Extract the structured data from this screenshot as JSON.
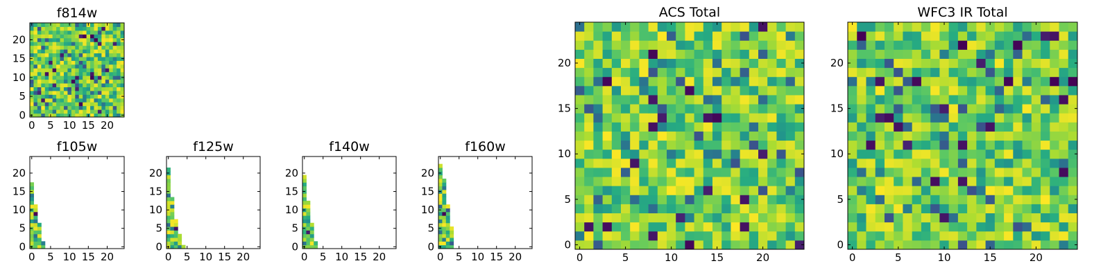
{
  "figure": {
    "colormap": "viridis",
    "background": "#ffffff"
  },
  "chart_data": [
    {
      "type": "heatmap",
      "title": "f814w",
      "xlim": [
        -0.5,
        24.5
      ],
      "ylim": [
        -0.5,
        24.5
      ],
      "xticks": [
        0,
        5,
        10,
        15,
        20
      ],
      "yticks": [
        0,
        5,
        10,
        15,
        20
      ],
      "grid": false,
      "origin": "lower",
      "colormap": "viridis",
      "color_range": [
        0,
        1
      ],
      "rows": 25,
      "cols": 25,
      "fill": "full",
      "noise_seed": 11
    },
    {
      "type": "heatmap",
      "title": "f105w",
      "xlim": [
        -0.5,
        24.5
      ],
      "ylim": [
        -0.5,
        24.5
      ],
      "xticks": [
        0,
        5,
        10,
        15,
        20
      ],
      "yticks": [
        0,
        5,
        10,
        15,
        20
      ],
      "grid": false,
      "origin": "lower",
      "colormap": "viridis",
      "color_range": [
        0,
        1
      ],
      "rows": 25,
      "cols": 25,
      "fill": "partial",
      "row_widths": [
        4,
        4,
        3,
        3,
        3,
        3,
        3,
        2,
        2,
        2,
        2,
        2,
        1,
        1,
        1,
        1,
        1,
        1,
        0,
        0,
        0,
        0,
        0,
        0,
        0
      ],
      "noise_seed": 21
    },
    {
      "type": "heatmap",
      "title": "f125w",
      "xlim": [
        -0.5,
        24.5
      ],
      "ylim": [
        -0.5,
        24.5
      ],
      "xticks": [
        0,
        5,
        10,
        15,
        20
      ],
      "yticks": [
        0,
        5,
        10,
        15,
        20
      ],
      "grid": false,
      "origin": "lower",
      "colormap": "viridis",
      "color_range": [
        0,
        1
      ],
      "rows": 25,
      "cols": 25,
      "fill": "partial",
      "row_widths": [
        5,
        4,
        4,
        4,
        3,
        3,
        3,
        3,
        2,
        2,
        2,
        2,
        2,
        2,
        1,
        1,
        1,
        1,
        1,
        1,
        1,
        1,
        0,
        0,
        0
      ],
      "noise_seed": 31
    },
    {
      "type": "heatmap",
      "title": "f140w",
      "xlim": [
        -0.5,
        24.5
      ],
      "ylim": [
        -0.5,
        24.5
      ],
      "xticks": [
        0,
        5,
        10,
        15,
        20
      ],
      "yticks": [
        0,
        5,
        10,
        15,
        20
      ],
      "grid": false,
      "origin": "lower",
      "colormap": "viridis",
      "color_range": [
        0,
        1
      ],
      "rows": 25,
      "cols": 25,
      "fill": "partial",
      "row_widths": [
        4,
        4,
        3,
        3,
        3,
        3,
        3,
        2,
        2,
        2,
        2,
        2,
        2,
        1,
        1,
        1,
        1,
        1,
        1,
        1,
        0,
        0,
        0,
        0,
        0
      ],
      "noise_seed": 41
    },
    {
      "type": "heatmap",
      "title": "f160w",
      "xlim": [
        -0.5,
        24.5
      ],
      "ylim": [
        -0.5,
        24.5
      ],
      "xticks": [
        0,
        5,
        10,
        15,
        20
      ],
      "yticks": [
        0,
        5,
        10,
        15,
        20
      ],
      "grid": false,
      "origin": "lower",
      "colormap": "viridis",
      "color_range": [
        0,
        1
      ],
      "rows": 25,
      "cols": 25,
      "fill": "partial",
      "row_widths": [
        4,
        4,
        4,
        4,
        4,
        4,
        3,
        3,
        3,
        3,
        3,
        3,
        2,
        2,
        2,
        2,
        2,
        2,
        2,
        1,
        1,
        1,
        1,
        0,
        0
      ],
      "noise_seed": 51
    },
    {
      "type": "heatmap",
      "title": "ACS Total",
      "xlim": [
        -0.5,
        24.5
      ],
      "ylim": [
        -0.5,
        24.5
      ],
      "xticks": [
        0,
        5,
        10,
        15,
        20
      ],
      "yticks": [
        0,
        5,
        10,
        15,
        20
      ],
      "grid": false,
      "origin": "lower",
      "colormap": "viridis",
      "color_range": [
        0,
        1
      ],
      "rows": 25,
      "cols": 25,
      "fill": "full",
      "noise_seed": 61
    },
    {
      "type": "heatmap",
      "title": "WFC3 IR Total",
      "xlim": [
        -0.5,
        24.5
      ],
      "ylim": [
        -0.5,
        24.5
      ],
      "xticks": [
        0,
        5,
        10,
        15,
        20
      ],
      "yticks": [
        0,
        5,
        10,
        15,
        20
      ],
      "grid": false,
      "origin": "lower",
      "colormap": "viridis",
      "color_range": [
        0,
        1
      ],
      "rows": 25,
      "cols": 25,
      "fill": "full",
      "noise_seed": 71
    }
  ]
}
